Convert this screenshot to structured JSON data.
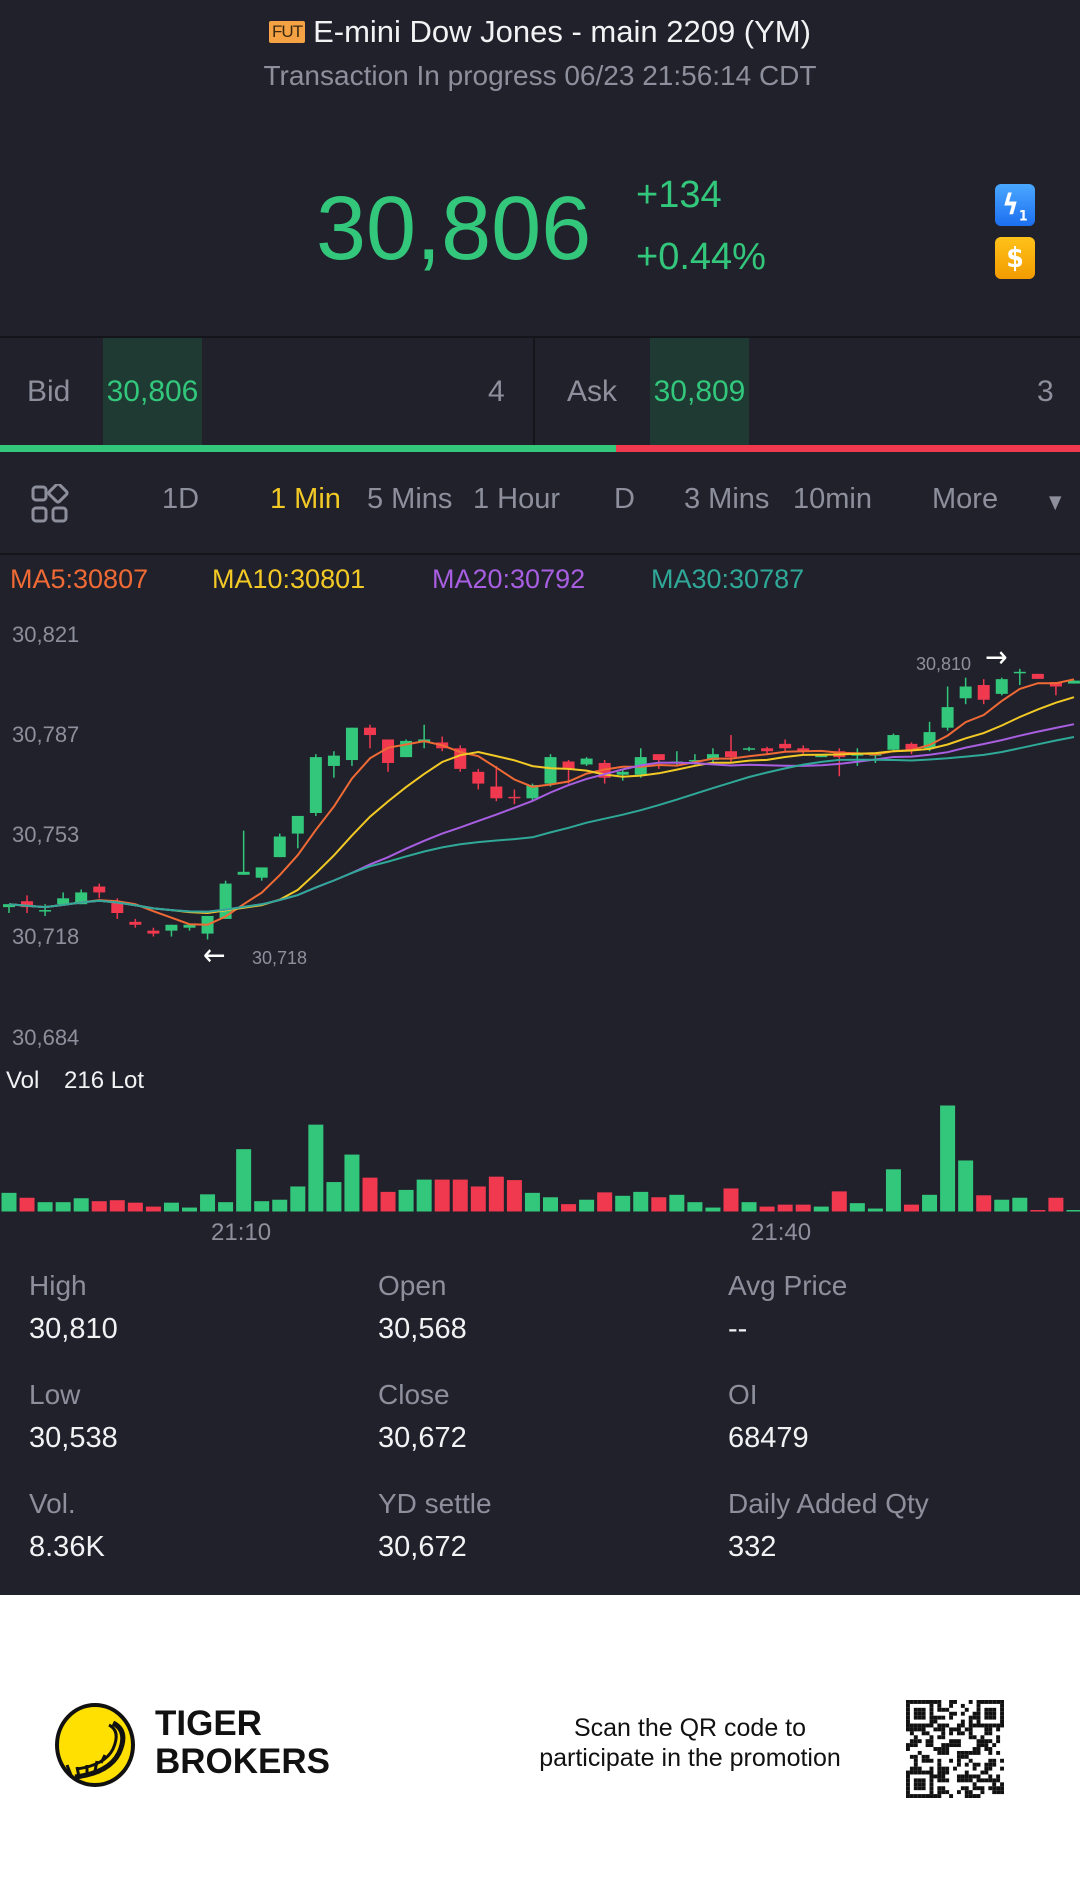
{
  "header": {
    "badge": "FUT",
    "title": "E-mini Dow Jones - main 2209 (YM)",
    "status": "Transaction In progress 06/23 21:56:14 CDT",
    "price": "30,806",
    "change": "+134",
    "change_pct": "+0.44%",
    "icons": [
      "lightning-icon",
      "dollar-icon"
    ]
  },
  "quote": {
    "bid_label": "Bid",
    "bid_price": "30,806",
    "bid_size": "4",
    "ask_label": "Ask",
    "ask_price": "30,809",
    "ask_size": "3",
    "bid_ratio": 0.57
  },
  "tabs": {
    "items": [
      "1D",
      "1 Min",
      "5 Mins",
      "1 Hour",
      "D",
      "3 Mins",
      "10min"
    ],
    "active": "1 Min",
    "more": "More"
  },
  "ma": {
    "ma5": "MA5:30807",
    "ma10": "MA10:30801",
    "ma20": "MA20:30792",
    "ma30": "MA30:30787"
  },
  "colors": {
    "up": "#33c77c",
    "down": "#f0384f",
    "ma5": "#f06a35",
    "ma10": "#f2c925",
    "ma20": "#a85ee0",
    "ma30": "#2fa898",
    "active_tab": "#f2c925"
  },
  "chart_data": {
    "type": "candlestick",
    "y_ticks": [
      "30,821",
      "30,787",
      "30,753",
      "30,718",
      "30,684"
    ],
    "ylim": [
      30684,
      30821
    ],
    "x_ticks": [
      "21:10",
      "21:40"
    ],
    "high_marker": "30,810",
    "low_marker": "30,718",
    "vol_label": "Vol",
    "vol_value": "216 Lot",
    "ohlc": [
      [
        30729,
        30730,
        30727,
        30730
      ],
      [
        30731,
        30733,
        30727,
        30729
      ],
      [
        30727.5,
        30730,
        30726,
        30728
      ],
      [
        30730,
        30734,
        30730,
        30732
      ],
      [
        30730,
        30735,
        30730,
        30734
      ],
      [
        30736,
        30737,
        30732,
        30734
      ],
      [
        30731,
        30732,
        30725,
        30727
      ],
      [
        30724,
        30725,
        30722,
        30723
      ],
      [
        30721,
        30722,
        30719,
        30720
      ],
      [
        30721,
        30723,
        30719,
        30723
      ],
      [
        30722,
        30723.5,
        30721,
        30723
      ],
      [
        30720,
        30726,
        30718,
        30726
      ],
      [
        30725,
        30738,
        30725,
        30737
      ],
      [
        30740,
        30755,
        30740,
        30741
      ],
      [
        30739,
        30742.5,
        30738,
        30742.5
      ],
      [
        30746,
        30754,
        30746,
        30753
      ],
      [
        30754,
        30760,
        30749,
        30760
      ],
      [
        30761,
        30781,
        30760,
        30780
      ],
      [
        30777,
        30782,
        30773,
        30780.5
      ],
      [
        30779,
        30790,
        30777,
        30790
      ],
      [
        30790,
        30791,
        30783,
        30787.5
      ],
      [
        30786,
        30786,
        30775,
        30778
      ],
      [
        30780,
        30786,
        30780,
        30785.5
      ],
      [
        30785,
        30791,
        30783,
        30786
      ],
      [
        30785,
        30787,
        30782,
        30783
      ],
      [
        30783,
        30784,
        30775,
        30776
      ],
      [
        30775,
        30776,
        30769,
        30771
      ],
      [
        30770,
        30777,
        30765,
        30766
      ],
      [
        30766.5,
        30769,
        30764,
        30766
      ],
      [
        30766,
        30771,
        30765,
        30770.5
      ],
      [
        30771,
        30781,
        30770,
        30780
      ],
      [
        30778.5,
        30779,
        30771,
        30776
      ],
      [
        30777.5,
        30780,
        30777,
        30779.5
      ],
      [
        30778,
        30779,
        30771,
        30773
      ],
      [
        30774,
        30776,
        30772,
        30775
      ],
      [
        30774,
        30783,
        30773,
        30780
      ],
      [
        30781,
        30781,
        30776,
        30779
      ],
      [
        30778,
        30782,
        30777,
        30778.5
      ],
      [
        30778.5,
        30781,
        30777.5,
        30779
      ],
      [
        30779,
        30783,
        30778,
        30781
      ],
      [
        30782,
        30787.5,
        30778,
        30780
      ],
      [
        30782.5,
        30783.5,
        30782,
        30783
      ],
      [
        30783,
        30783.5,
        30781,
        30782
      ],
      [
        30784.5,
        30786,
        30782,
        30783
      ],
      [
        30783,
        30784,
        30781,
        30782
      ],
      [
        30780,
        30781,
        30780,
        30780.5
      ],
      [
        30782,
        30783,
        30773.5,
        30780
      ],
      [
        30780.5,
        30783,
        30777,
        30781
      ],
      [
        30780.5,
        30781,
        30778,
        30781
      ],
      [
        30782.5,
        30788,
        30782,
        30787.5
      ],
      [
        30784.5,
        30785,
        30781,
        30782.5
      ],
      [
        30783,
        30792,
        30782,
        30788.5
      ],
      [
        30790,
        30804,
        30789,
        30797
      ],
      [
        30800,
        30807,
        30798,
        30804
      ],
      [
        30804.5,
        30806.5,
        30798,
        30799.5
      ],
      [
        30801.5,
        30807,
        30801,
        30806.5
      ],
      [
        30808.5,
        30810,
        30804.5,
        30809
      ],
      [
        30808.3,
        30808.3,
        30806.6,
        30806.6
      ],
      [
        30805.5,
        30805.5,
        30801,
        30804
      ],
      [
        30805,
        30806,
        30805,
        30806
      ]
    ],
    "volume": [
      38,
      28,
      19,
      19,
      27,
      21,
      23,
      18,
      10,
      18,
      8,
      35,
      19,
      127,
      21,
      24,
      51,
      177,
      60,
      116,
      69,
      40,
      44,
      65,
      65,
      65,
      51,
      71,
      64,
      38,
      29,
      15,
      24,
      39,
      32,
      40,
      29,
      34,
      19,
      8,
      47,
      19,
      10,
      14,
      14,
      10,
      41,
      17,
      6,
      86,
      14,
      34,
      216,
      104,
      33,
      24,
      28,
      3,
      28,
      3
    ],
    "volume_max": 216
  },
  "stats": [
    {
      "label": "High",
      "value": "30,810"
    },
    {
      "label": "Open",
      "value": "30,568"
    },
    {
      "label": "Avg Price",
      "value": "--"
    },
    {
      "label": "Low",
      "value": "30,538"
    },
    {
      "label": "Close",
      "value": "30,672"
    },
    {
      "label": "OI",
      "value": "68479"
    },
    {
      "label": "Vol.",
      "value": "8.36K"
    },
    {
      "label": "YD settle",
      "value": "30,672"
    },
    {
      "label": "Daily Added Qty",
      "value": "332"
    }
  ],
  "footer": {
    "brand_line1": "TIGER",
    "brand_line2": "BROKERS",
    "promo_line1": "Scan the QR code to",
    "promo_line2": "participate in the promotion"
  }
}
